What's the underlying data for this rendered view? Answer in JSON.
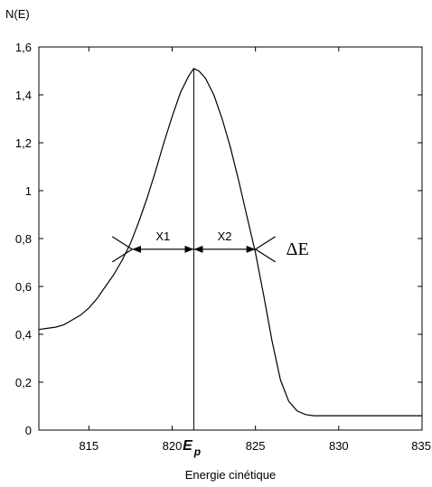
{
  "chart_data": {
    "type": "line",
    "xlabel": "Energie cinétique",
    "ylabel": "N(E)",
    "xlim": [
      812,
      835
    ],
    "ylim": [
      0,
      1.6
    ],
    "x_ticks": [
      815,
      820,
      825,
      830,
      835
    ],
    "y_ticks": [
      {
        "value": 0,
        "label": "0"
      },
      {
        "value": 0.2,
        "label": "0,2"
      },
      {
        "value": 0.4,
        "label": "0,4"
      },
      {
        "value": 0.6,
        "label": "0,6"
      },
      {
        "value": 0.8,
        "label": "0,8"
      },
      {
        "value": 1.0,
        "label": "1"
      },
      {
        "value": 1.2,
        "label": "1,2"
      },
      {
        "value": 1.4,
        "label": "1,4"
      },
      {
        "value": 1.6,
        "label": "1,6"
      }
    ],
    "grid": false,
    "series": [
      {
        "color": "#000000",
        "x": [
          812,
          812.5,
          813,
          813.5,
          814,
          814.5,
          815,
          815.5,
          816,
          816.5,
          817,
          817.5,
          818,
          818.5,
          819,
          819.5,
          820,
          820.5,
          821,
          821.3,
          821.6,
          822,
          822.5,
          823,
          823.5,
          824,
          824.5,
          825,
          825.5,
          826,
          826.5,
          827,
          827.5,
          828,
          828.5,
          829,
          830,
          831,
          832,
          833,
          834,
          835
        ],
        "y": [
          0.42,
          0.425,
          0.43,
          0.44,
          0.46,
          0.48,
          0.51,
          0.55,
          0.6,
          0.65,
          0.71,
          0.78,
          0.87,
          0.97,
          1.08,
          1.2,
          1.31,
          1.41,
          1.48,
          1.51,
          1.5,
          1.47,
          1.4,
          1.3,
          1.18,
          1.04,
          0.89,
          0.74,
          0.56,
          0.37,
          0.21,
          0.12,
          0.08,
          0.065,
          0.06,
          0.06,
          0.06,
          0.06,
          0.06,
          0.06,
          0.06,
          0.06
        ]
      }
    ],
    "annotations": {
      "ep_position": 821.3,
      "ep_label_main": "E",
      "ep_label_sub": "p",
      "fwhm_level": 0.755,
      "fwhm_left": 817.6,
      "fwhm_right": 825.0,
      "x1_label": "X1",
      "x2_label": "X2",
      "delta_label": "ΔE"
    }
  }
}
